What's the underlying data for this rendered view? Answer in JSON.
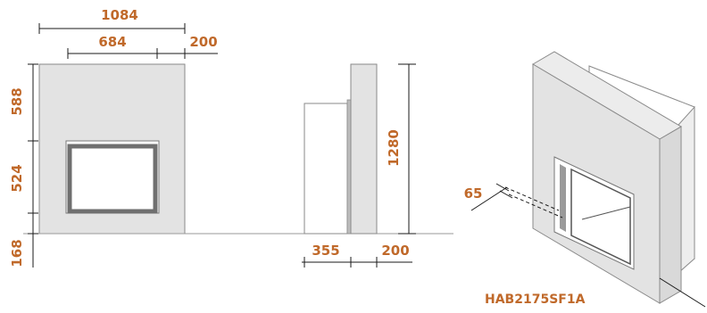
{
  "front_view": {
    "width_total": "1084",
    "width_opening": "684",
    "width_side": "200",
    "height_top": "588",
    "height_opening": "524",
    "height_base": "168"
  },
  "side_view": {
    "height_total": "1280",
    "depth_box": "355",
    "depth_wall": "200"
  },
  "iso_view": {
    "depth_inset": "65",
    "model_code": "HAB2175SF1A"
  },
  "colors": {
    "dimension_text": "#c0692a",
    "surround_fill": "#e3e3e3",
    "outline": "#8a8a8a"
  }
}
